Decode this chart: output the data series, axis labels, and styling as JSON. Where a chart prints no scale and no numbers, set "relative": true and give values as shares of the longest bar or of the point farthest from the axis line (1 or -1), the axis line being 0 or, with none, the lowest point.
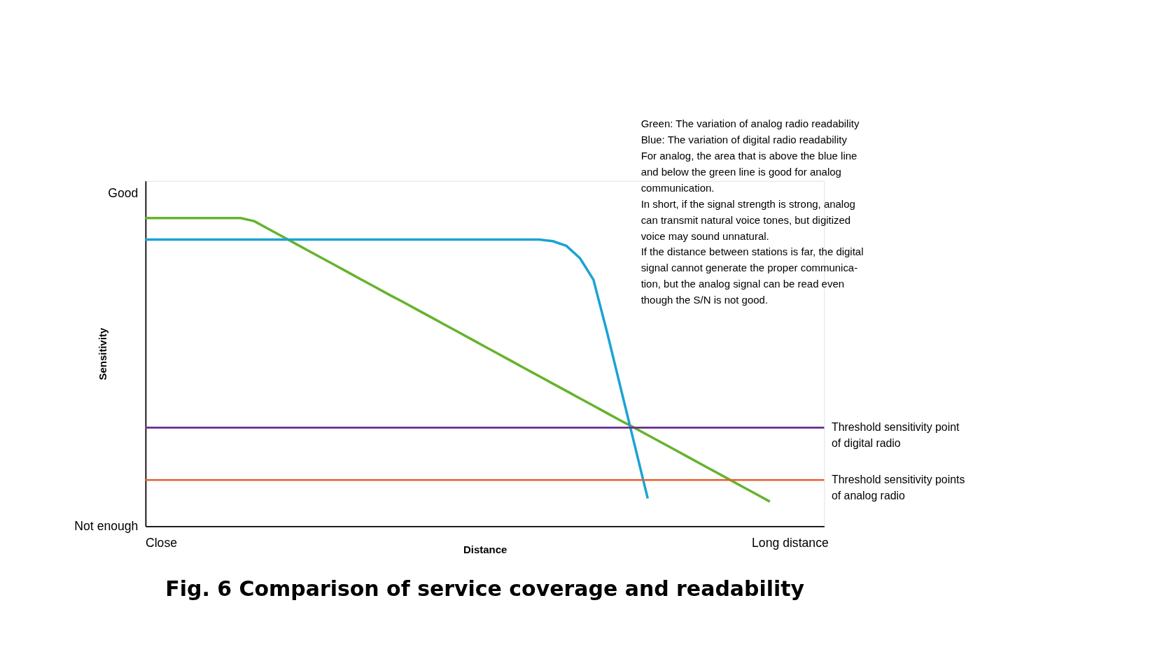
{
  "chart_data": {
    "type": "line",
    "relative": true,
    "title": "Fig. 6 Comparison of service coverage and readability",
    "xlabel": "Distance",
    "ylabel": "Sensitivity",
    "categories": [
      null,
      null,
      null,
      null,
      null,
      null,
      null,
      null,
      null,
      null,
      null,
      null,
      null,
      null,
      null,
      null,
      null,
      null,
      null,
      null,
      null,
      null,
      null,
      null,
      null,
      null,
      null,
      null,
      null,
      null,
      null,
      null,
      null,
      null,
      null,
      null,
      null,
      null,
      null,
      null,
      null,
      null,
      null,
      null,
      null,
      null,
      null,
      null,
      null,
      null,
      null
    ],
    "series": [
      {
        "color": "#66b32e",
        "values": [
          1,
          1,
          1,
          1,
          1,
          1,
          1,
          1,
          0.99,
          0.966,
          0.942,
          0.918,
          0.894,
          0.87,
          0.846,
          0.822,
          0.798,
          0.774,
          0.75,
          0.727,
          0.703,
          0.679,
          0.655,
          0.631,
          0.607,
          0.583,
          0.559,
          0.535,
          0.511,
          0.487,
          0.463,
          0.439,
          0.415,
          0.391,
          0.367,
          0.343,
          0.32,
          0.296,
          0.272,
          0.248,
          0.224,
          0.2,
          0.176,
          0.152,
          0.128,
          0.104,
          0.08,
          null,
          null,
          null,
          null
        ]
      },
      {
        "color": "#1aa3d4",
        "values": [
          0.93,
          0.93,
          0.93,
          0.93,
          0.93,
          0.93,
          0.93,
          0.93,
          0.93,
          0.93,
          0.93,
          0.93,
          0.93,
          0.93,
          0.93,
          0.93,
          0.93,
          0.93,
          0.93,
          0.93,
          0.93,
          0.93,
          0.93,
          0.93,
          0.93,
          0.93,
          0.93,
          0.93,
          0.93,
          0.93,
          0.925,
          0.91,
          0.87,
          0.8,
          0.63,
          0.45,
          0.27,
          0.09,
          null,
          null,
          null,
          null,
          null,
          null,
          null,
          null,
          null,
          null,
          null,
          null,
          null
        ]
      }
    ],
    "ref_lines": [
      {
        "axis": "y",
        "value": 0.32,
        "label": "Threshold sensitivity point\nof digital radio",
        "color": "#6a2c91"
      },
      {
        "axis": "y",
        "value": 0.15,
        "label": "Threshold sensitivity points\nof analog radio",
        "color": "#e8612c"
      }
    ],
    "annotations": [
      "Good",
      "Not enough",
      "Close",
      "Long distance",
      "Green: The variation of analog radio readability\nBlue: The variation of digital radio readability\nFor analog, the area that is above the blue line\nand below the green line is good for analog\ncommunication.\nIn short, if the signal strength is strong, analog\ncan transmit natural voice tones, but digitized\nvoice may sound unnatural.\nIf the distance between stations is far, the digital\nsignal cannot generate the proper communica-\ntion, but the analog signal can be read even\nthough the S/N is not good."
    ],
    "grid": false,
    "legend": false,
    "marker": "none",
    "line_style": "solid"
  }
}
